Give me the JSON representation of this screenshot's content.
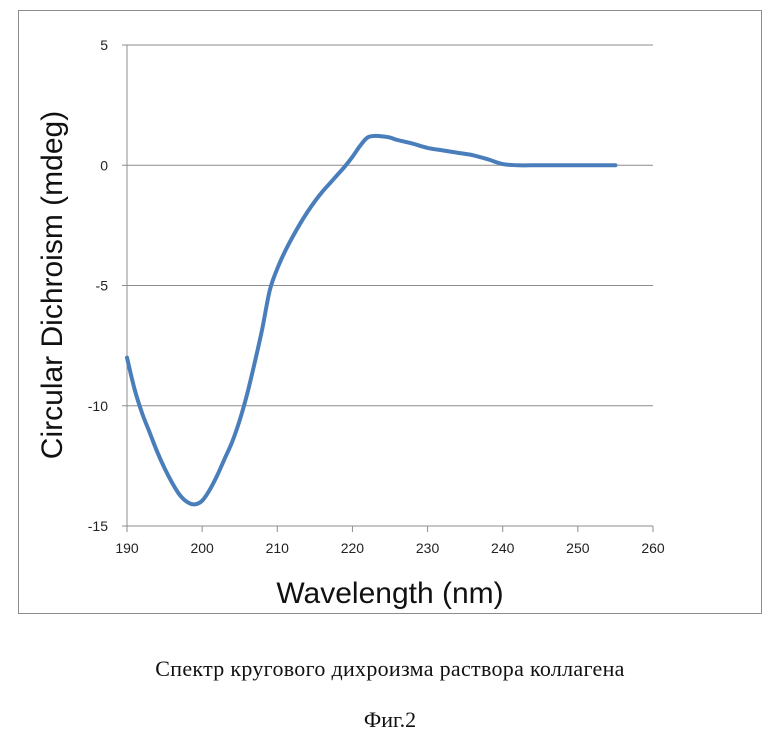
{
  "chart_data": {
    "type": "line",
    "title": "",
    "xlabel": "Wavelength (nm)",
    "ylabel": "Circular Dichroism (mdeg)",
    "xlim": [
      190,
      260
    ],
    "ylim": [
      -15,
      5
    ],
    "xticks": [
      190,
      200,
      210,
      220,
      230,
      240,
      250,
      260
    ],
    "yticks": [
      5,
      0,
      -5,
      -10,
      -15
    ],
    "grid": "horizontal",
    "legend": "none",
    "series": [
      {
        "color": "#4a7ebb",
        "x": [
          190,
          191,
          192,
          193,
          194,
          195,
          196,
          197,
          198,
          199,
          200,
          201,
          202,
          203,
          204,
          205,
          206,
          207,
          208,
          209,
          210,
          211,
          212,
          213,
          214,
          215,
          216,
          217,
          218,
          219,
          220,
          221,
          222,
          223,
          224,
          225,
          226,
          228,
          230,
          232,
          234,
          236,
          238,
          240,
          242,
          245,
          250,
          255
        ],
        "y": [
          -8.0,
          -9.3,
          -10.3,
          -11.1,
          -11.9,
          -12.6,
          -13.2,
          -13.7,
          -14.0,
          -14.1,
          -13.95,
          -13.5,
          -12.9,
          -12.2,
          -11.5,
          -10.6,
          -9.5,
          -8.2,
          -6.8,
          -5.2,
          -4.3,
          -3.6,
          -3.0,
          -2.45,
          -1.95,
          -1.5,
          -1.1,
          -0.75,
          -0.4,
          -0.05,
          0.35,
          0.8,
          1.15,
          1.22,
          1.2,
          1.15,
          1.05,
          0.9,
          0.72,
          0.62,
          0.52,
          0.42,
          0.25,
          0.05,
          0.0,
          0.0,
          0.0,
          0.0
        ]
      }
    ]
  },
  "caption": "Спектр кругового дихроизма раствора коллагена",
  "figure_label": "Фиг.2"
}
